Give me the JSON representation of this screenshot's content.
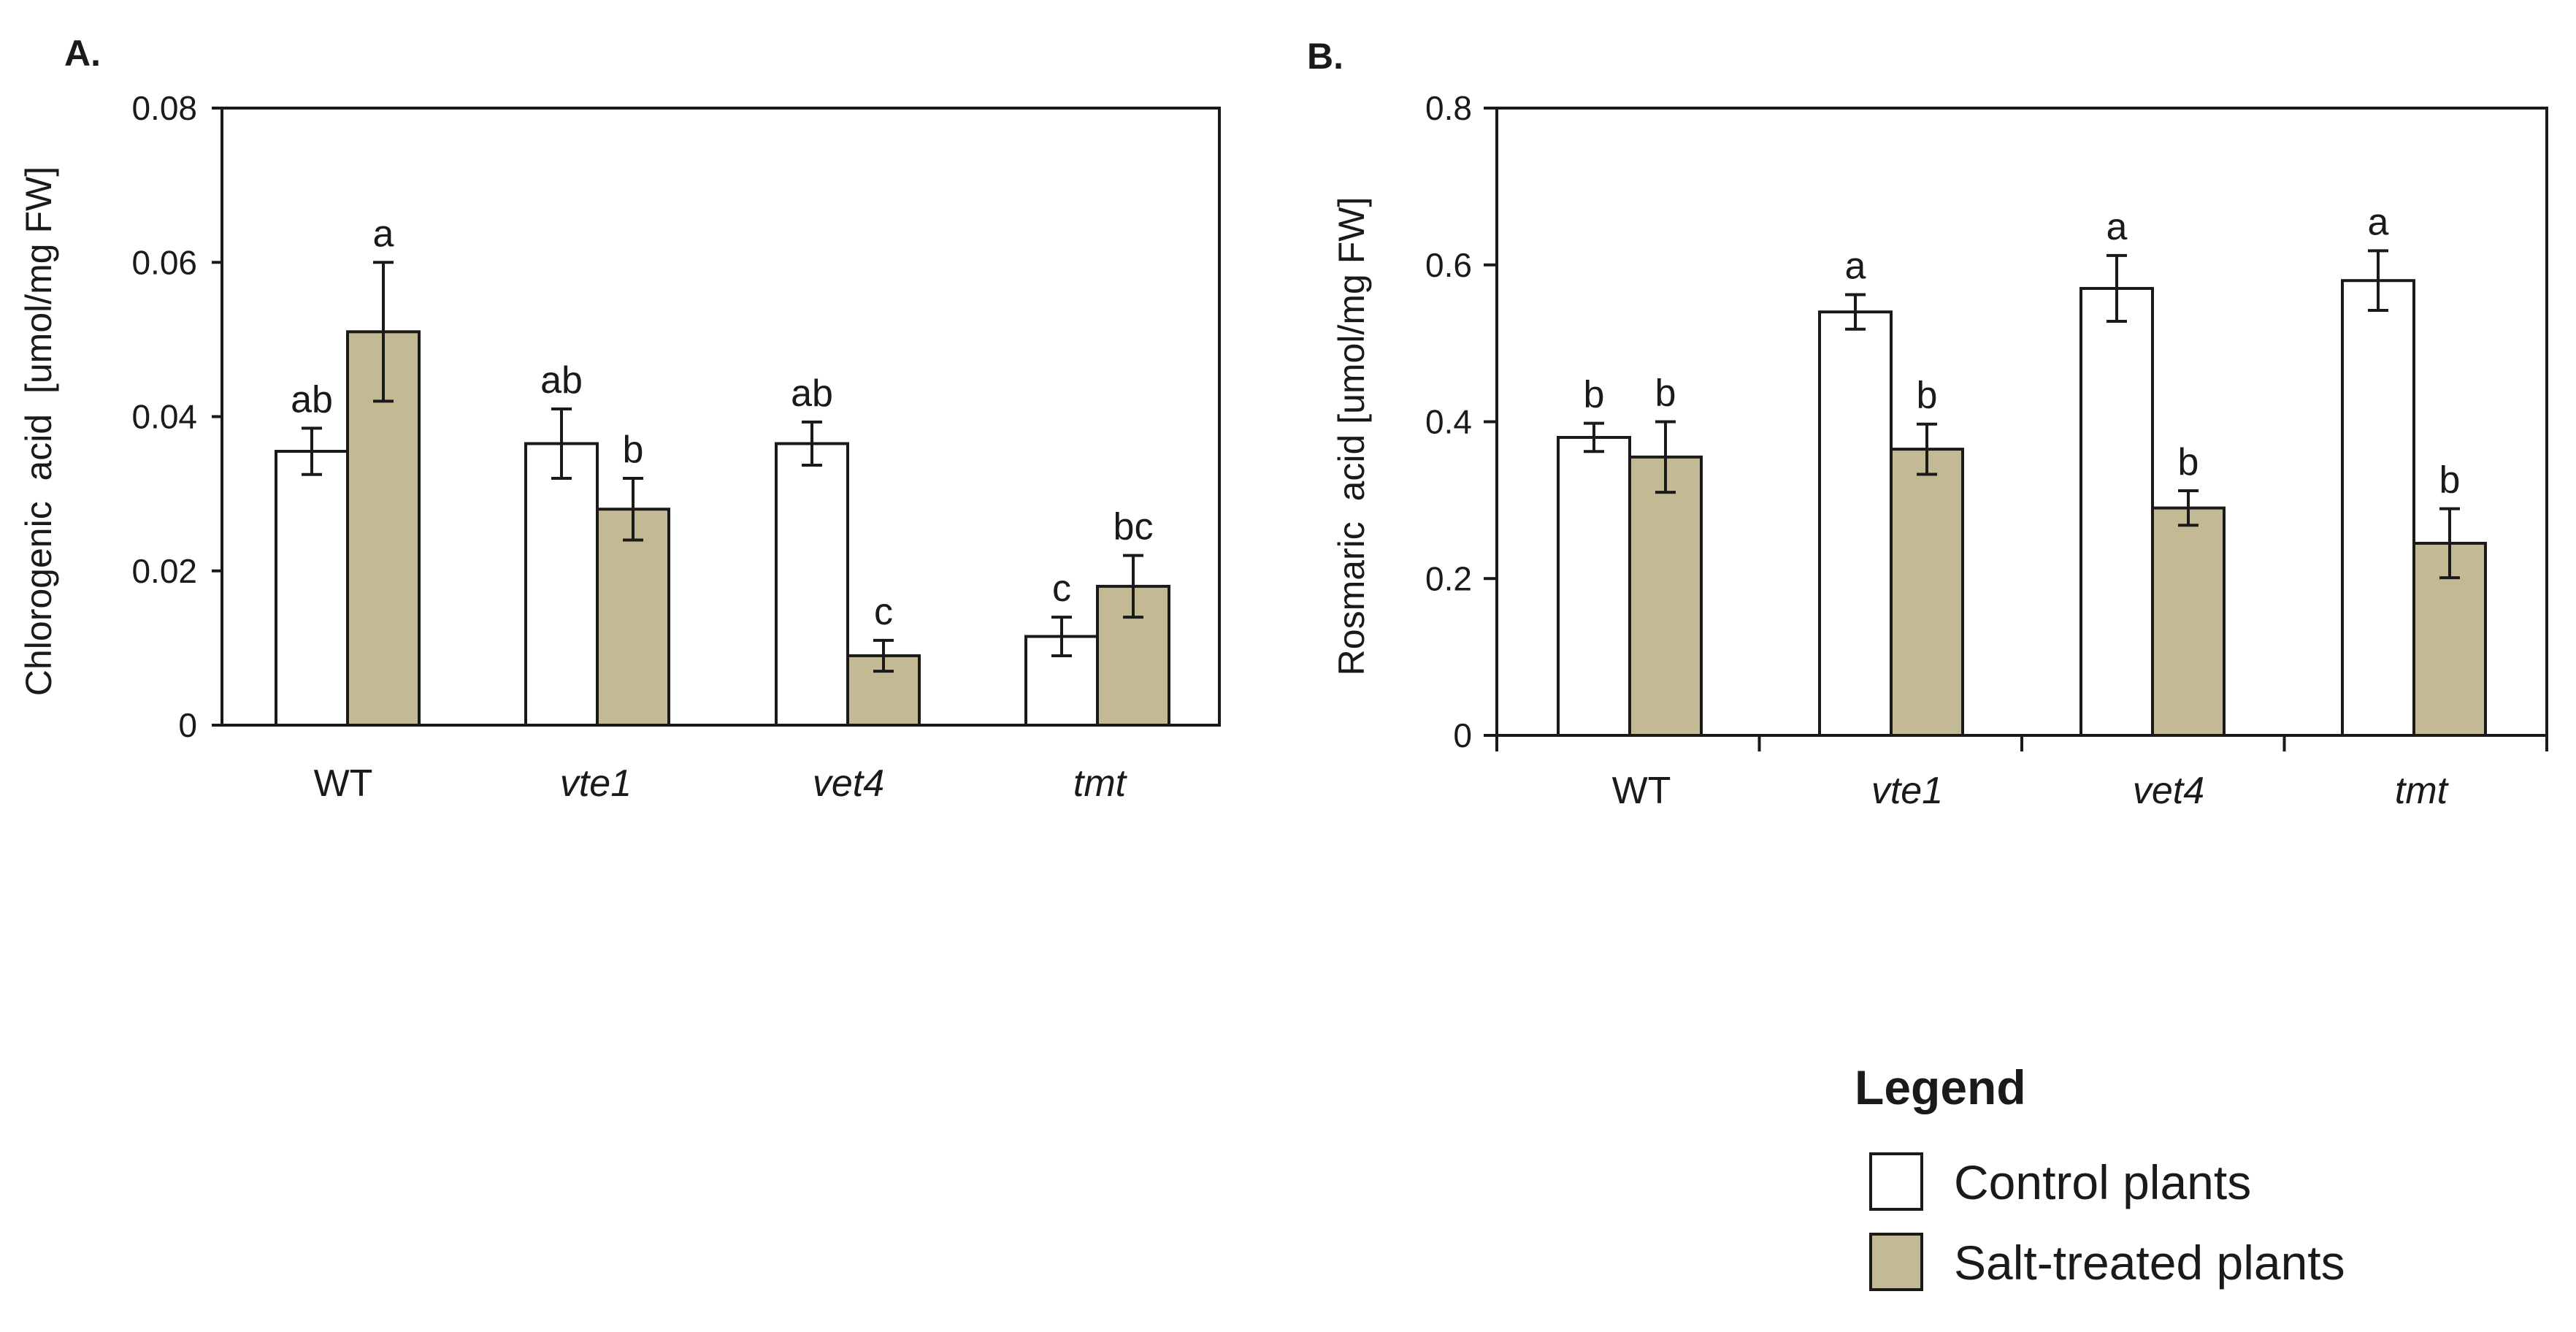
{
  "colors": {
    "control": "#ffffff",
    "salt": "#c3b995",
    "stroke": "#1a1a1a"
  },
  "chart_data": [
    {
      "type": "bar",
      "panel_label": "A.",
      "ylabel": "Chlorogenic  acid  [umol/mg FW]",
      "xlabel": "",
      "ylim": [
        0,
        0.08
      ],
      "yticks": [
        "0",
        "0.02",
        "0.04",
        "0.06",
        "0.08"
      ],
      "ytick_values": [
        0,
        0.02,
        0.04,
        0.06,
        0.08
      ],
      "categories": [
        "WT",
        "vte1",
        "vet4",
        "tmt"
      ],
      "category_italic": [
        false,
        true,
        true,
        true
      ],
      "series": [
        {
          "name": "Control plants",
          "values": [
            0.0355,
            0.0365,
            0.0365,
            0.0115
          ],
          "errors": [
            0.003,
            0.0045,
            0.0028,
            0.0025
          ],
          "labels": [
            "ab",
            "ab",
            "ab",
            "c"
          ]
        },
        {
          "name": "Salt-treated plants",
          "values": [
            0.051,
            0.028,
            0.009,
            0.018
          ],
          "errors": [
            0.009,
            0.004,
            0.002,
            0.004
          ],
          "labels": [
            "a",
            "b",
            "c",
            "bc"
          ]
        }
      ]
    },
    {
      "type": "bar",
      "panel_label": "B.",
      "ylabel": "Rosmaric  acid [umol/mg FW]",
      "xlabel": "",
      "ylim": [
        0,
        0.8
      ],
      "yticks": [
        "0",
        "0.2",
        "0.4",
        "0.6",
        "0.8"
      ],
      "ytick_values": [
        0,
        0.2,
        0.4,
        0.6,
        0.8
      ],
      "categories": [
        "WT",
        "vte1",
        "vet4",
        "tmt"
      ],
      "category_italic": [
        false,
        true,
        true,
        true
      ],
      "series": [
        {
          "name": "Control plants",
          "values": [
            0.38,
            0.54,
            0.57,
            0.58
          ],
          "errors": [
            0.018,
            0.022,
            0.042,
            0.038
          ],
          "labels": [
            "b",
            "a",
            "a",
            "a"
          ]
        },
        {
          "name": "Salt-treated plants",
          "values": [
            0.355,
            0.365,
            0.29,
            0.245
          ],
          "errors": [
            0.045,
            0.032,
            0.022,
            0.044
          ],
          "labels": [
            "b",
            "b",
            "b",
            "b"
          ]
        }
      ]
    }
  ],
  "legend": {
    "title": "Legend",
    "items": [
      {
        "label": "Control plants",
        "series": "control"
      },
      {
        "label": "Salt-treated plants",
        "series": "salt"
      }
    ]
  }
}
